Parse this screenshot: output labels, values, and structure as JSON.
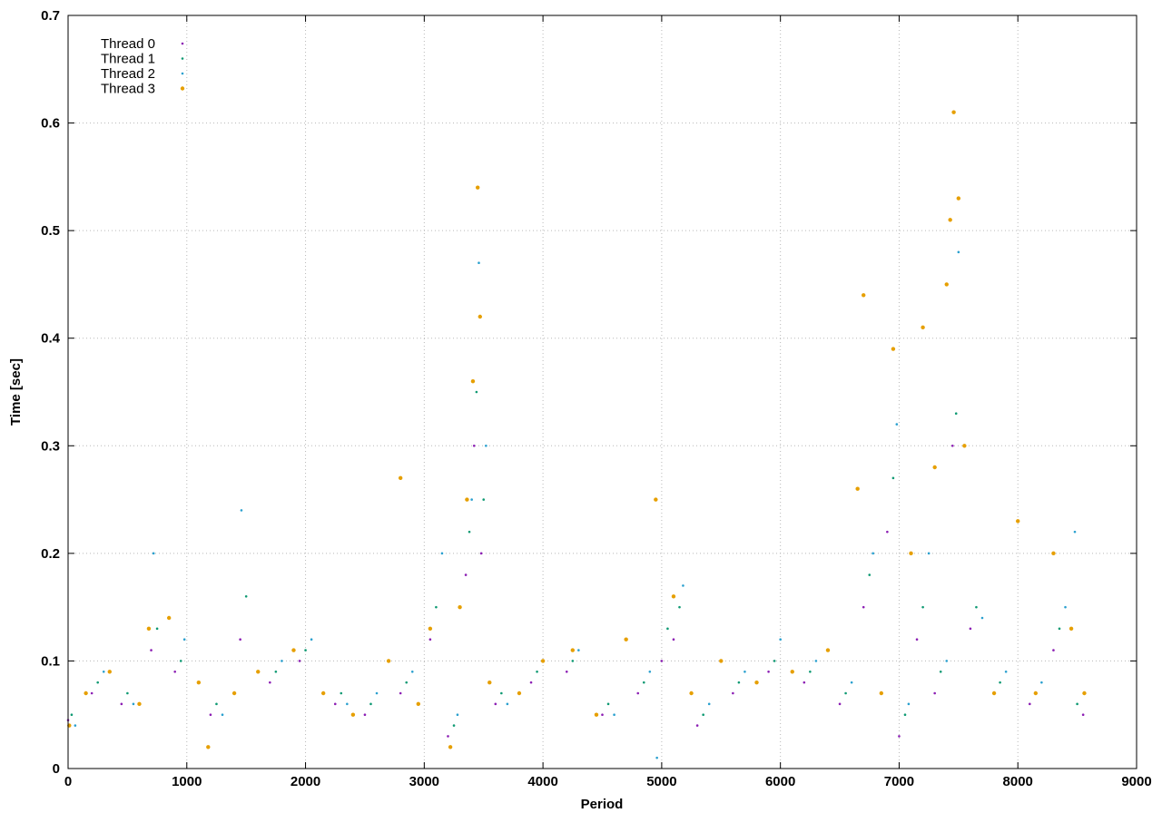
{
  "chart_data": {
    "type": "scatter",
    "title": "",
    "xlabel": "Period",
    "ylabel": "Time [sec]",
    "xlim": [
      0,
      9000
    ],
    "ylim": [
      0,
      0.7
    ],
    "x_ticks": [
      "0",
      "1000",
      "2000",
      "3000",
      "4000",
      "5000",
      "6000",
      "7000",
      "8000",
      "9000"
    ],
    "y_ticks": [
      "0",
      "0.1",
      "0.2",
      "0.3",
      "0.4",
      "0.5",
      "0.6",
      "0.7"
    ],
    "grid": true,
    "legend_position": "top-left",
    "series": [
      {
        "name": "Thread 0",
        "color": "#8c1fb4",
        "marker": "dot",
        "x": [
          0,
          200,
          450,
          700,
          900,
          1200,
          1450,
          1700,
          1950,
          2250,
          2500,
          2800,
          3050,
          3200,
          3350,
          3420,
          3480,
          3600,
          3900,
          4200,
          4500,
          4800,
          5000,
          5100,
          5300,
          5600,
          5900,
          6200,
          6500,
          6700,
          6900,
          7000,
          7150,
          7300,
          7450,
          7600,
          7800,
          8100,
          8300,
          8550
        ],
        "y": [
          0.045,
          0.07,
          0.06,
          0.11,
          0.09,
          0.05,
          0.12,
          0.08,
          0.1,
          0.06,
          0.05,
          0.07,
          0.12,
          0.03,
          0.18,
          0.3,
          0.2,
          0.06,
          0.08,
          0.09,
          0.05,
          0.07,
          0.1,
          0.12,
          0.04,
          0.07,
          0.09,
          0.08,
          0.06,
          0.15,
          0.22,
          0.03,
          0.12,
          0.07,
          0.3,
          0.13,
          0.07,
          0.06,
          0.11,
          0.05
        ]
      },
      {
        "name": "Thread 1",
        "color": "#0f9a73",
        "marker": "dot",
        "x": [
          30,
          250,
          500,
          750,
          950,
          1250,
          1500,
          1750,
          2000,
          2300,
          2550,
          2850,
          3100,
          3250,
          3380,
          3440,
          3500,
          3650,
          3950,
          4250,
          4550,
          4850,
          5050,
          5150,
          5350,
          5650,
          5950,
          6250,
          6550,
          6750,
          6950,
          7050,
          7200,
          7350,
          7480,
          7650,
          7850,
          8150,
          8350,
          8500
        ],
        "y": [
          0.05,
          0.08,
          0.07,
          0.13,
          0.1,
          0.06,
          0.16,
          0.09,
          0.11,
          0.07,
          0.06,
          0.08,
          0.15,
          0.04,
          0.22,
          0.35,
          0.25,
          0.07,
          0.09,
          0.1,
          0.06,
          0.08,
          0.13,
          0.15,
          0.05,
          0.08,
          0.1,
          0.09,
          0.07,
          0.18,
          0.27,
          0.05,
          0.15,
          0.09,
          0.33,
          0.15,
          0.08,
          0.07,
          0.13,
          0.06
        ]
      },
      {
        "name": "Thread 2",
        "color": "#2aa0cf",
        "marker": "dot",
        "x": [
          60,
          300,
          550,
          720,
          980,
          1300,
          1460,
          1800,
          2050,
          2350,
          2600,
          2900,
          3150,
          3280,
          3400,
          3460,
          3520,
          3700,
          4000,
          4300,
          4600,
          4900,
          4960,
          5180,
          5400,
          5700,
          6000,
          6300,
          6600,
          6780,
          6980,
          7080,
          7250,
          7400,
          7500,
          7700,
          7900,
          8200,
          8400,
          8480
        ],
        "y": [
          0.04,
          0.09,
          0.06,
          0.2,
          0.12,
          0.05,
          0.24,
          0.1,
          0.12,
          0.06,
          0.07,
          0.09,
          0.2,
          0.05,
          0.25,
          0.47,
          0.3,
          0.06,
          0.1,
          0.11,
          0.05,
          0.09,
          0.01,
          0.17,
          0.06,
          0.09,
          0.12,
          0.1,
          0.08,
          0.2,
          0.32,
          0.06,
          0.2,
          0.1,
          0.48,
          0.14,
          0.09,
          0.08,
          0.15,
          0.22
        ]
      },
      {
        "name": "Thread 3",
        "color": "#e69f00",
        "marker": "dot",
        "x": [
          10,
          150,
          350,
          600,
          680,
          850,
          1100,
          1180,
          1400,
          1600,
          1900,
          2150,
          2400,
          2700,
          2800,
          2950,
          3050,
          3220,
          3300,
          3360,
          3410,
          3450,
          3470,
          3550,
          3800,
          4000,
          4250,
          4450,
          4700,
          4950,
          5100,
          5250,
          5500,
          5800,
          6100,
          6400,
          6650,
          6700,
          6850,
          6950,
          7100,
          7200,
          7300,
          7400,
          7430,
          7460,
          7500,
          7550,
          7800,
          8000,
          8150,
          8300,
          8450,
          8560
        ],
        "y": [
          0.04,
          0.07,
          0.09,
          0.06,
          0.13,
          0.14,
          0.08,
          0.02,
          0.07,
          0.09,
          0.11,
          0.07,
          0.05,
          0.1,
          0.27,
          0.06,
          0.13,
          0.02,
          0.15,
          0.25,
          0.36,
          0.54,
          0.42,
          0.08,
          0.07,
          0.1,
          0.11,
          0.05,
          0.12,
          0.25,
          0.16,
          0.07,
          0.1,
          0.08,
          0.09,
          0.11,
          0.26,
          0.44,
          0.07,
          0.39,
          0.2,
          0.41,
          0.28,
          0.45,
          0.51,
          0.61,
          0.53,
          0.3,
          0.07,
          0.23,
          0.07,
          0.2,
          0.13,
          0.07
        ]
      }
    ]
  }
}
